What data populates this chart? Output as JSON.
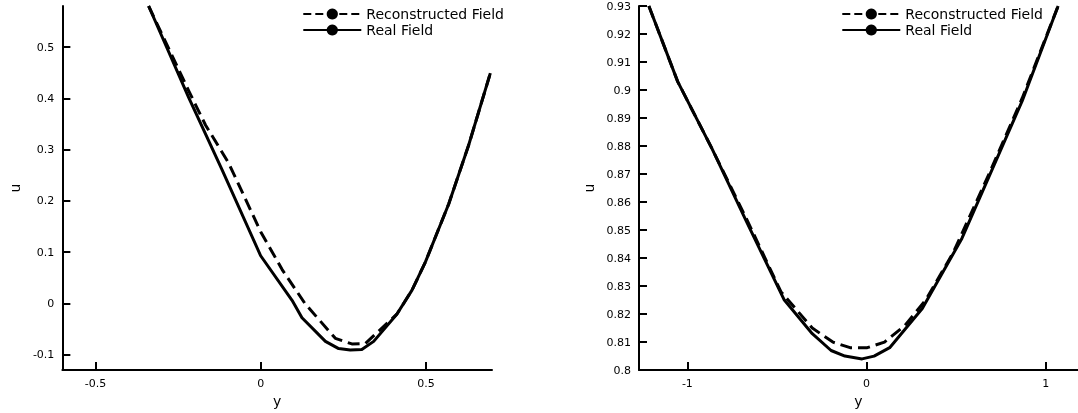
{
  "chart_data": [
    {
      "type": "line",
      "xlabel": "y",
      "ylabel": "u",
      "xlim": [
        -0.6,
        0.7
      ],
      "ylim": [
        -0.13,
        0.58
      ],
      "xticks": [
        -0.5,
        0,
        0.5
      ],
      "yticks": [
        -0.1,
        0,
        0.1,
        0.2,
        0.3,
        0.4,
        0.5
      ],
      "legend": "top right",
      "marker": "none",
      "series": [
        {
          "name": "Reconstructed Field",
          "color": "#000000",
          "line_style": "dashed",
          "x": [
            -0.339,
            -0.218,
            -0.167,
            -0.097,
            0,
            0.065,
            0.135,
            0.226,
            0.276,
            0.317,
            0.367,
            0.412,
            0.458,
            0.498,
            0.569,
            0.629,
            0.695
          ],
          "values": [
            0.58,
            0.415,
            0.348,
            0.274,
            0.14,
            0.066,
            -0.001,
            -0.068,
            -0.079,
            -0.078,
            -0.048,
            -0.021,
            0.026,
            0.08,
            0.194,
            0.308,
            0.449
          ]
        },
        {
          "name": "Real Field",
          "color": "#000000",
          "line_style": "solid",
          "x": [
            -0.339,
            -0.218,
            -0.117,
            0,
            0.095,
            0.125,
            0.196,
            0.236,
            0.271,
            0.306,
            0.342,
            0.412,
            0.458,
            0.498,
            0.569,
            0.629,
            0.695
          ],
          "values": [
            0.58,
            0.402,
            0.261,
            0.093,
            0.006,
            -0.028,
            -0.074,
            -0.088,
            -0.091,
            -0.09,
            -0.074,
            -0.021,
            0.026,
            0.08,
            0.194,
            0.308,
            0.449
          ]
        }
      ]
    },
    {
      "type": "line",
      "xlabel": "y",
      "ylabel": "u",
      "xlim": [
        -1.27,
        1.18
      ],
      "ylim": [
        0.8,
        0.93
      ],
      "xticks": [
        -1,
        0,
        1
      ],
      "yticks": [
        0.8,
        0.81,
        0.82,
        0.83,
        0.84,
        0.85,
        0.86,
        0.87,
        0.88,
        0.89,
        0.9,
        0.91,
        0.92,
        0.93
      ],
      "legend": "top right",
      "marker": "none",
      "series": [
        {
          "name": "Reconstructed Field",
          "color": "#000000",
          "line_style": "dashed",
          "x": [
            -1.215,
            -1.054,
            -0.862,
            -0.67,
            -0.478,
            -0.303,
            -0.188,
            -0.092,
            0.004,
            0.1,
            0.215,
            0.33,
            0.484,
            0.676,
            0.868,
            1.069
          ],
          "values": [
            0.93,
            0.903,
            0.879,
            0.854,
            0.828,
            0.815,
            0.81,
            0.808,
            0.808,
            0.81,
            0.816,
            0.825,
            0.842,
            0.869,
            0.897,
            0.93
          ]
        },
        {
          "name": "Real Field",
          "color": "#000000",
          "line_style": "solid",
          "x": [
            -1.215,
            -1.054,
            -0.862,
            -0.67,
            -0.459,
            -0.303,
            -0.198,
            -0.121,
            -0.025,
            0.042,
            0.129,
            0.311,
            0.532,
            0.676,
            0.868,
            1.069
          ],
          "values": [
            0.93,
            0.903,
            0.879,
            0.853,
            0.825,
            0.813,
            0.807,
            0.805,
            0.804,
            0.805,
            0.808,
            0.822,
            0.847,
            0.868,
            0.896,
            0.93
          ]
        }
      ]
    }
  ]
}
